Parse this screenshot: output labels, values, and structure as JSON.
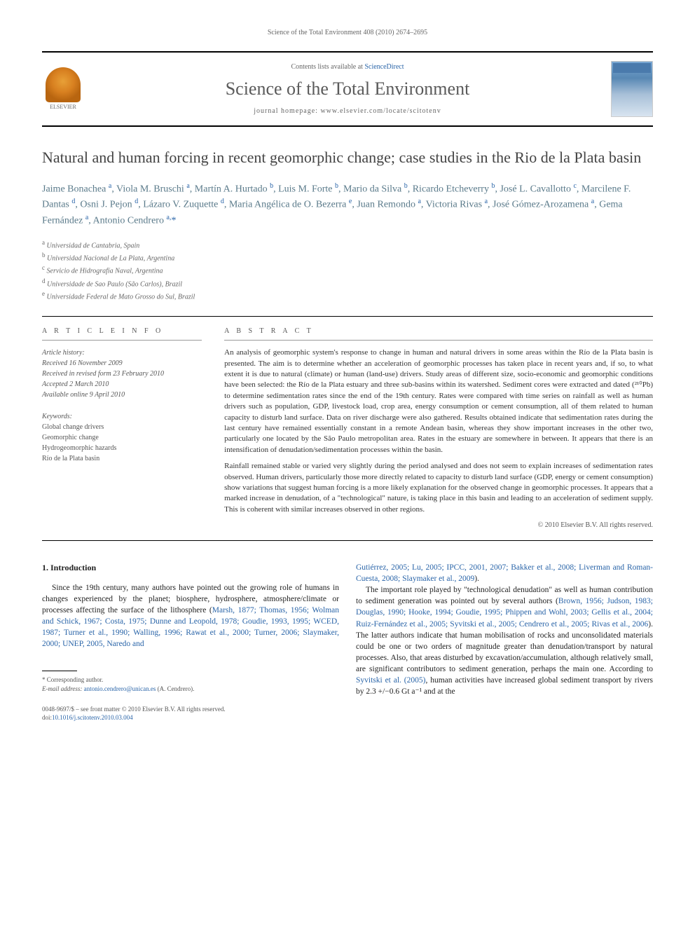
{
  "running_header": "Science of the Total Environment 408 (2010) 2674–2695",
  "banner": {
    "contents_prefix": "Contents lists available at ",
    "contents_link": "ScienceDirect",
    "journal_name": "Science of the Total Environment",
    "homepage_prefix": "journal homepage: ",
    "homepage_url": "www.elsevier.com/locate/scitotenv",
    "publisher_label": "ELSEVIER"
  },
  "article": {
    "title": "Natural and human forcing in recent geomorphic change; case studies in the Rio de la Plata basin",
    "authors_html": "Jaime Bonachea <sup>a</sup>, Viola M. Bruschi <sup>a</sup>, Martín A. Hurtado <sup>b</sup>, Luis M. Forte <sup>b</sup>, Mario da Silva <sup>b</sup>, Ricardo Etcheverry <sup>b</sup>, José L. Cavallotto <sup>c</sup>, Marcilene F. Dantas <sup>d</sup>, Osni J. Pejon <sup>d</sup>, Lázaro V. Zuquette <sup>d</sup>, Maria Angélica de O. Bezerra <sup>e</sup>, Juan Remondo <sup>a</sup>, Victoria Rivas <sup>a</sup>, José Gómez-Arozamena <sup>a</sup>, Gema Fernández <sup>a</sup>, Antonio Cendrero <sup>a,</sup><span class='corr-mark'>*</span>",
    "affiliations": [
      {
        "sup": "a",
        "text": "Universidad de Cantabria, Spain"
      },
      {
        "sup": "b",
        "text": "Universidad Nacional de La Plata, Argentina"
      },
      {
        "sup": "c",
        "text": "Servicio de Hidrografía Naval, Argentina"
      },
      {
        "sup": "d",
        "text": "Universidade de Sao Paulo (São Carlos), Brazil"
      },
      {
        "sup": "e",
        "text": "Universidade Federal de Mato Grosso do Sul, Brazil"
      }
    ]
  },
  "info": {
    "section_label": "A R T I C L E   I N F O",
    "history_head": "Article history:",
    "history": [
      "Received 16 November 2009",
      "Received in revised form 23 February 2010",
      "Accepted 2 March 2010",
      "Available online 9 April 2010"
    ],
    "keywords_head": "Keywords:",
    "keywords": [
      "Global change drivers",
      "Geomorphic change",
      "Hydrogeomorphic hazards",
      "Río de la Plata basin"
    ]
  },
  "abstract": {
    "section_label": "A B S T R A C T",
    "p1": "An analysis of geomorphic system's response to change in human and natural drivers in some areas within the Río de la Plata basin is presented. The aim is to determine whether an acceleration of geomorphic processes has taken place in recent years and, if so, to what extent it is due to natural (climate) or human (land-use) drivers. Study areas of different size, socio-economic and geomorphic conditions have been selected: the Río de la Plata estuary and three sub-basins within its watershed. Sediment cores were extracted and dated (²¹⁰Pb) to determine sedimentation rates since the end of the 19th century. Rates were compared with time series on rainfall as well as human drivers such as population, GDP, livestock load, crop area, energy consumption or cement consumption, all of them related to human capacity to disturb land surface. Data on river discharge were also gathered. Results obtained indicate that sedimentation rates during the last century have remained essentially constant in a remote Andean basin, whereas they show important increases in the other two, particularly one located by the São Paulo metropolitan area. Rates in the estuary are somewhere in between. It appears that there is an intensification of denudation/sedimentation processes within the basin.",
    "p2": "Rainfall remained stable or varied very slightly during the period analysed and does not seem to explain increases of sedimentation rates observed. Human drivers, particularly those more directly related to capacity to disturb land surface (GDP, energy or cement consumption) show variations that suggest human forcing is a more likely explanation for the observed change in geomorphic processes. It appears that a marked increase in denudation, of a \"technological\" nature, is taking place in this basin and leading to an acceleration of sediment supply. This is coherent with similar increases observed in other regions.",
    "copyright": "© 2010 Elsevier B.V. All rights reserved."
  },
  "body": {
    "heading": "1. Introduction",
    "left_p1_pre": "Since the 19th century, many authors have pointed out the growing role of humans in changes experienced by the planet; biosphere, hydrosphere, atmosphere/climate or processes affecting the surface of the lithosphere (",
    "left_refs1": "Marsh, 1877; Thomas, 1956; Wolman and Schick, 1967; Costa, 1975; Dunne and Leopold, 1978; Goudie, 1993, 1995; WCED, 1987; Turner et al., 1990; Walling, 1996; Rawat et al., 2000; Turner, 2006; Slaymaker, 2000; UNEP, 2005, Naredo and",
    "right_refs_cont": "Gutiérrez, 2005; Lu, 2005; IPCC, 2001, 2007; Bakker et al., 2008; Liverman and Roman-Cuesta, 2008; Slaymaker et al., 2009",
    "right_p1_post": ").",
    "right_p2_pre": "The important role played by \"technological denudation\" as well as human contribution to sediment generation was pointed out by several authors (",
    "right_refs2": "Brown, 1956; Judson, 1983; Douglas, 1990; Hooke, 1994; Goudie, 1995; Phippen and Wohl, 2003; Gellis et al., 2004; Ruiz-Fernández et al., 2005; Syvitski et al., 2005; Cendrero et al., 2005; Rivas et al., 2006",
    "right_p2_post": "). The latter authors indicate that human mobilisation of rocks and unconsolidated materials could be one or two orders of magnitude greater than denudation/transport by natural processes. Also, that areas disturbed by excavation/accumulation, although relatively small, are significant contributors to sediment generation, perhaps the main one. According to ",
    "right_ref3": "Syvitski et al. (2005)",
    "right_p2_tail": ", human activities have increased global sediment transport by rivers by 2.3 +/−0.6 Gt a⁻¹ and at the"
  },
  "footnote": {
    "corr_label": "* Corresponding author.",
    "email_label": "E-mail address: ",
    "email": "antonio.cendrero@unican.es",
    "email_tail": " (A. Cendrero)."
  },
  "doi": {
    "line1": "0048-9697/$ – see front matter © 2010 Elsevier B.V. All rights reserved.",
    "line2_pre": "doi:",
    "doi": "10.1016/j.scitotenv.2010.03.004"
  },
  "colors": {
    "link": "#2964a8",
    "author": "#5a7a8a",
    "text": "#333333",
    "muted": "#666666"
  }
}
